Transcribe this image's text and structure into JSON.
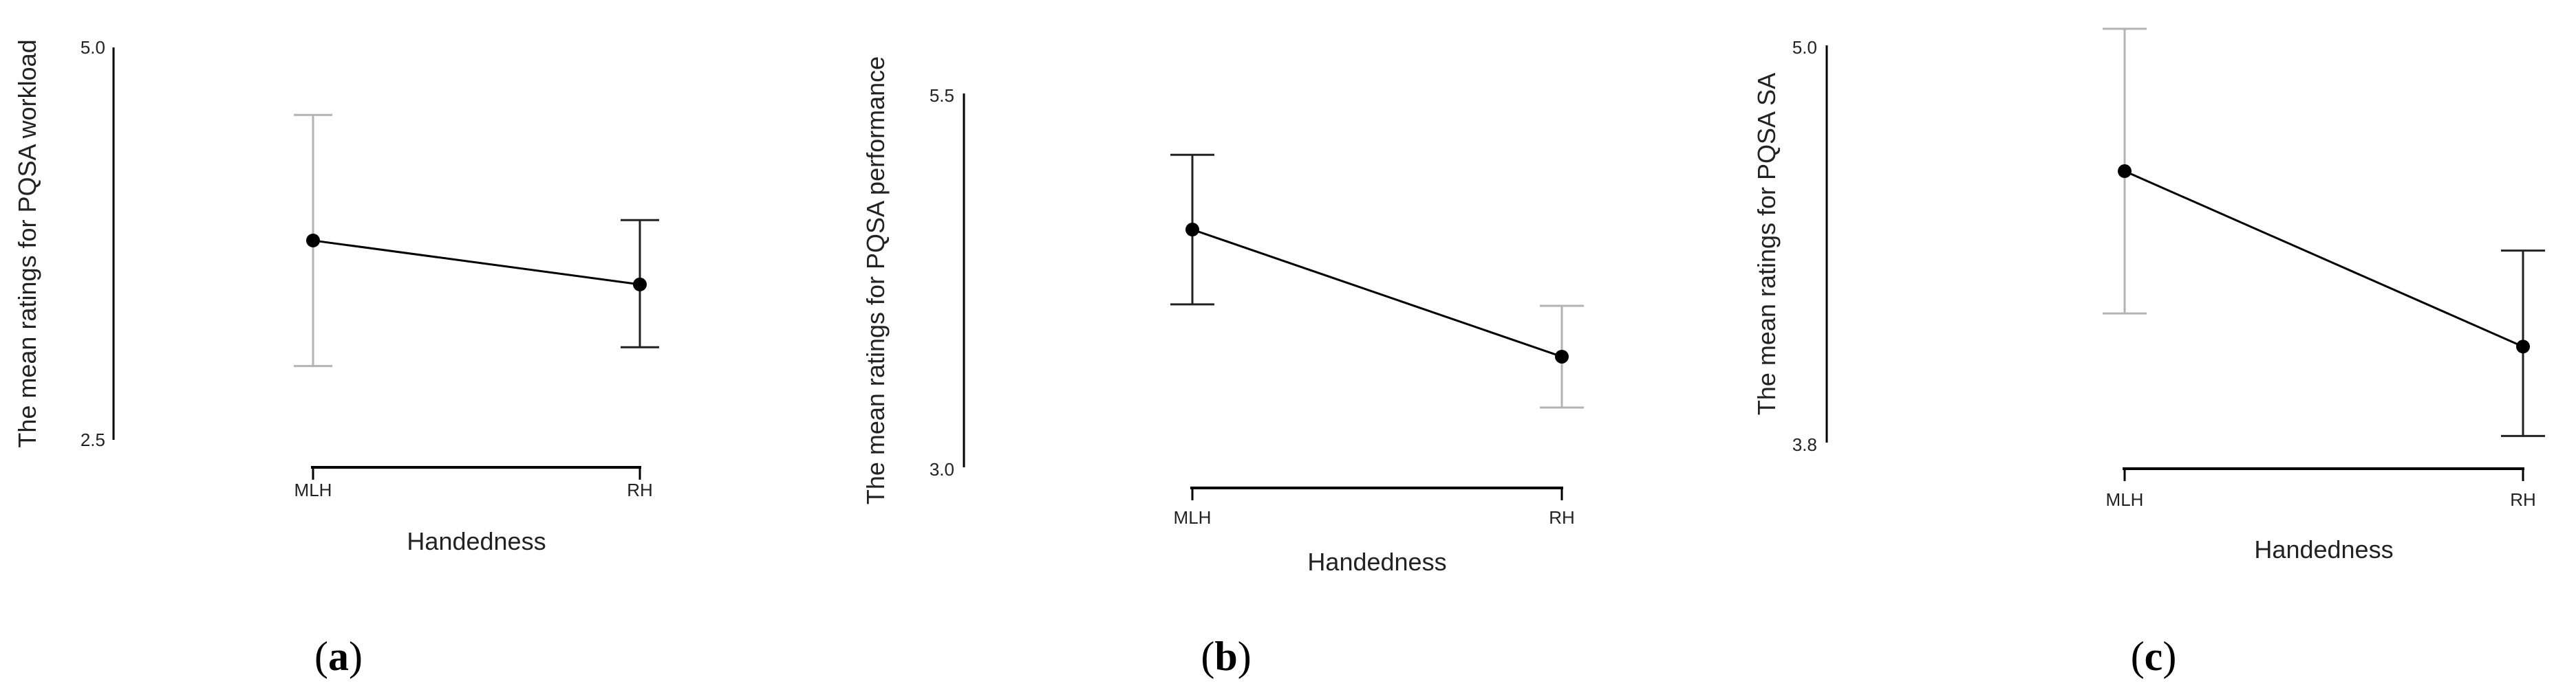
{
  "chart_data": [
    {
      "type": "line",
      "panel_label": "(a)",
      "panel_letter": "a",
      "xlabel": "Handedness",
      "ylabel": "The mean ratings for PQSA workload",
      "categories": [
        "MLH",
        "RH"
      ],
      "ylim": [
        2.5,
        5.0
      ],
      "yticks": [
        "2.5",
        "5.0"
      ],
      "points": [
        {
          "x": "MLH",
          "y": 3.77,
          "err_low": 2.97,
          "err_high": 4.57
        },
        {
          "x": "RH",
          "y": 3.49,
          "err_low": 3.09,
          "err_high": 3.9
        }
      ],
      "error_bar_colors": [
        "#b3b3b3",
        "#222222"
      ]
    },
    {
      "type": "line",
      "panel_label": "(b)",
      "panel_letter": "b",
      "xlabel": "Handedness",
      "ylabel": "The mean ratings for PQSA performance",
      "categories": [
        "MLH",
        "RH"
      ],
      "ylim": [
        3.0,
        5.5
      ],
      "yticks": [
        "3.0",
        "5.5"
      ],
      "points": [
        {
          "x": "MLH",
          "y": 4.59,
          "err_low": 4.09,
          "err_high": 5.09
        },
        {
          "x": "RH",
          "y": 3.74,
          "err_low": 3.4,
          "err_high": 4.08
        }
      ],
      "error_bar_colors": [
        "#222222",
        "#b3b3b3"
      ]
    },
    {
      "type": "line",
      "panel_label": "(c)",
      "panel_letter": "c",
      "xlabel": "Handedness",
      "ylabel": "The mean ratings for PQSA SA",
      "categories": [
        "MLH",
        "RH"
      ],
      "ylim": [
        3.8,
        5.0
      ],
      "yticks": [
        "3.8",
        "5.0"
      ],
      "points": [
        {
          "x": "MLH",
          "y": 4.62,
          "err_low": 4.19,
          "err_high": 5.05
        },
        {
          "x": "RH",
          "y": 4.09,
          "err_low": 3.82,
          "err_high": 4.38
        }
      ],
      "error_bar_colors": [
        "#b3b3b3",
        "#222222"
      ]
    }
  ]
}
